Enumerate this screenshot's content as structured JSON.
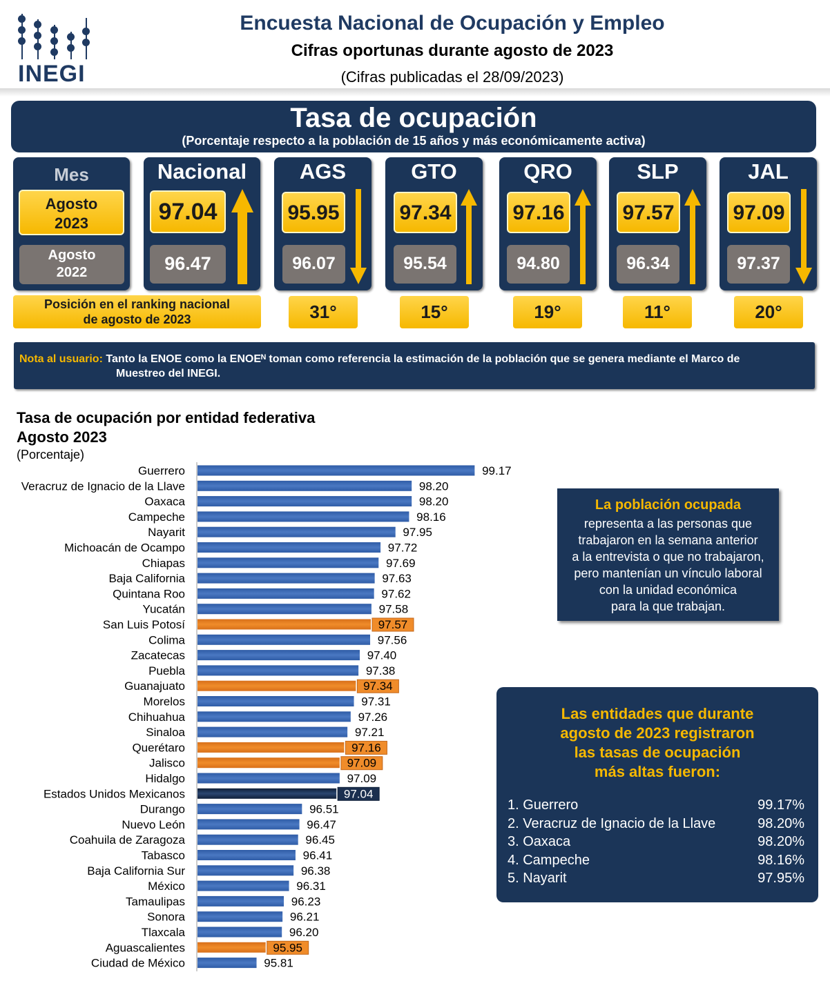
{
  "header": {
    "logo_text": "INEGI",
    "title": "Encuesta Nacional de Ocupación y Empleo",
    "subtitle": "Cifras oportunas durante agosto de 2023",
    "published": "(Cifras publicadas el 28/09/2023)"
  },
  "banner": {
    "title": "Tasa de ocupación",
    "subtitle": "(Porcentaje respecto a la población de 15 años y más económicamente activa)"
  },
  "mes": {
    "label": "Mes",
    "current_month": "Agosto",
    "current_year": "2023",
    "previous_month": "Agosto",
    "previous_year": "2022"
  },
  "cards": [
    {
      "name": "Nacional",
      "current": "97.04",
      "previous": "96.47",
      "trend": "up"
    },
    {
      "name": "AGS",
      "current": "95.95",
      "previous": "96.07",
      "trend": "down",
      "rank": "31°"
    },
    {
      "name": "GTO",
      "current": "97.34",
      "previous": "95.54",
      "trend": "up",
      "rank": "15°"
    },
    {
      "name": "QRO",
      "current": "97.16",
      "previous": "94.80",
      "trend": "up",
      "rank": "19°"
    },
    {
      "name": "SLP",
      "current": "97.57",
      "previous": "96.34",
      "trend": "up",
      "rank": "11°"
    },
    {
      "name": "JAL",
      "current": "97.09",
      "previous": "97.37",
      "trend": "down",
      "rank": "20°"
    }
  ],
  "ranking_label_line1": "Posición en el ranking nacional",
  "ranking_label_line2": "de agosto de 2023",
  "note": {
    "label": "Nota al usuario:",
    "text": "Tanto la ENOE como la ENOEᴺ toman como referencia la estimación de la población que se genera mediante el Marco de",
    "text2": "Muestreo del INEGI."
  },
  "chart_title": "Tasa de ocupación por entidad federativa",
  "chart_subtitle": "Agosto 2023",
  "chart_unit": "(Porcentaje)",
  "chart_data": {
    "type": "bar",
    "orientation": "horizontal",
    "title": "Tasa de ocupación por entidad federativa",
    "subtitle": "Agosto 2023",
    "ylabel": "(Porcentaje)",
    "xlim": [
      94.9,
      99.5
    ],
    "categories": [
      "Guerrero",
      "Veracruz de Ignacio de la Llave",
      "Oaxaca",
      "Campeche",
      "Nayarit",
      "Michoacán de Ocampo",
      "Chiapas",
      "Baja California",
      "Quintana Roo",
      "Yucatán",
      "San Luis Potosí",
      "Colima",
      "Zacatecas",
      "Puebla",
      "Guanajuato",
      "Morelos",
      "Chihuahua",
      "Sinaloa",
      "Querétaro",
      "Jalisco",
      "Hidalgo",
      "Estados Unidos Mexicanos",
      "Durango",
      "Nuevo León",
      "Coahuila de Zaragoza",
      "Tabasco",
      "Baja California Sur",
      "México",
      "Tamaulipas",
      "Sonora",
      "Tlaxcala",
      "Aguascalientes",
      "Ciudad de México"
    ],
    "labels": [
      "99.17",
      "98.20",
      "98.20",
      "98.16",
      "97.95",
      "97.72",
      "97.69",
      "97.63",
      "97.62",
      "97.58",
      "97.57",
      "97.56",
      "97.40",
      "97.38",
      "97.34",
      "97.31",
      "97.26",
      "97.21",
      "97.16",
      "97.09",
      "97.09",
      "97.04",
      "96.51",
      "96.47",
      "96.45",
      "96.41",
      "96.38",
      "96.31",
      "96.23",
      "96.21",
      "96.20",
      "95.95",
      "95.81"
    ],
    "values": [
      99.17,
      98.2,
      98.2,
      98.16,
      97.95,
      97.72,
      97.69,
      97.63,
      97.62,
      97.58,
      97.57,
      97.56,
      97.4,
      97.38,
      97.34,
      97.31,
      97.26,
      97.21,
      97.16,
      97.09,
      97.09,
      97.04,
      96.51,
      96.47,
      96.45,
      96.41,
      96.38,
      96.31,
      96.23,
      96.21,
      96.2,
      95.95,
      95.81
    ],
    "highlight": [
      "normal",
      "normal",
      "normal",
      "normal",
      "normal",
      "normal",
      "normal",
      "normal",
      "normal",
      "normal",
      "orange",
      "normal",
      "normal",
      "normal",
      "orange",
      "normal",
      "normal",
      "normal",
      "orange",
      "orange",
      "normal",
      "national",
      "normal",
      "normal",
      "normal",
      "normal",
      "normal",
      "normal",
      "normal",
      "normal",
      "normal",
      "orange",
      "normal"
    ],
    "colors": {
      "normal": "#4a78c2",
      "orange": "#f08c2a",
      "national": "#1b2f4f"
    }
  },
  "info_box": {
    "title": "La población ocupada",
    "lines": [
      "representa a las personas que",
      "trabajaron en la semana anterior",
      "a la entrevista o que no trabajaron,",
      "pero mantenían un vínculo laboral",
      "con la unidad económica",
      "para la que trabajan."
    ]
  },
  "top_box": {
    "title_lines": [
      "Las entidades que durante",
      "agosto de 2023 registraron",
      "las tasas de ocupación",
      "más altas fueron:"
    ],
    "items": [
      {
        "name": "1. Guerrero",
        "value": "99.17%"
      },
      {
        "name": "2. Veracruz de Ignacio de la Llave",
        "value": "98.20%"
      },
      {
        "name": "3. Oaxaca",
        "value": "98.20%"
      },
      {
        "name": "4. Campeche",
        "value": "98.16%"
      },
      {
        "name": "5. Nayarit",
        "value": "97.95%"
      }
    ]
  }
}
